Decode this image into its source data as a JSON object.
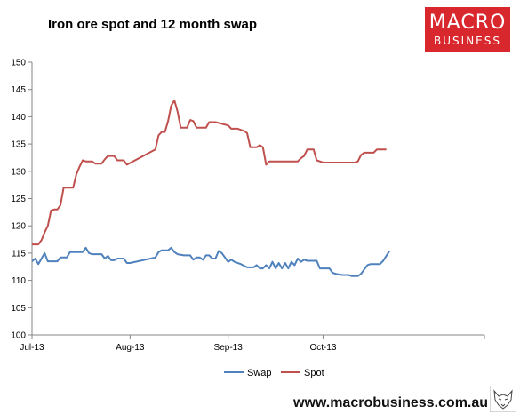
{
  "title": "Iron ore spot and 12 month swap",
  "logo": {
    "line1": "MACRO",
    "line2": "BUSINESS",
    "color": "#d9272e"
  },
  "footer": {
    "url": "www.macrobusiness.com.au"
  },
  "chart_data": {
    "type": "line",
    "ylim": [
      100,
      150
    ],
    "yticks": [
      100,
      105,
      110,
      115,
      120,
      125,
      130,
      135,
      140,
      145,
      150
    ],
    "xlim": [
      "2013-07-01",
      "2013-11-21"
    ],
    "xticks": [
      {
        "label": "Jul-13",
        "date": "2013-07-01"
      },
      {
        "label": "Aug-13",
        "date": "2013-08-01"
      },
      {
        "label": "Sep-13",
        "date": "2013-09-01"
      },
      {
        "label": "Oct-13",
        "date": "2013-10-01"
      }
    ],
    "grid": false,
    "legend": "bottom",
    "series": [
      {
        "name": "Swap",
        "color": "#4f81bd",
        "points": [
          [
            "2013-07-01",
            113.5
          ],
          [
            "2013-07-02",
            114.0
          ],
          [
            "2013-07-03",
            113.0
          ],
          [
            "2013-07-04",
            114.0
          ],
          [
            "2013-07-05",
            115.0
          ],
          [
            "2013-07-06",
            113.5
          ],
          [
            "2013-07-09",
            113.5
          ],
          [
            "2013-07-10",
            114.2
          ],
          [
            "2013-07-12",
            114.2
          ],
          [
            "2013-07-13",
            115.2
          ],
          [
            "2013-07-17",
            115.2
          ],
          [
            "2013-07-18",
            116.0
          ],
          [
            "2013-07-19",
            115.0
          ],
          [
            "2013-07-20",
            114.8
          ],
          [
            "2013-07-23",
            114.8
          ],
          [
            "2013-07-24",
            114.0
          ],
          [
            "2013-07-25",
            114.5
          ],
          [
            "2013-07-26",
            113.7
          ],
          [
            "2013-07-27",
            113.7
          ],
          [
            "2013-07-28",
            114.0
          ],
          [
            "2013-07-30",
            114.0
          ],
          [
            "2013-07-31",
            113.2
          ],
          [
            "2013-08-01",
            113.2
          ],
          [
            "2013-08-09",
            114.2
          ],
          [
            "2013-08-10",
            115.2
          ],
          [
            "2013-08-11",
            115.5
          ],
          [
            "2013-08-13",
            115.5
          ],
          [
            "2013-08-14",
            116.0
          ],
          [
            "2013-08-15",
            115.2
          ],
          [
            "2013-08-16",
            114.8
          ],
          [
            "2013-08-18",
            114.6
          ],
          [
            "2013-08-20",
            114.6
          ],
          [
            "2013-08-21",
            113.8
          ],
          [
            "2013-08-22",
            114.2
          ],
          [
            "2013-08-23",
            114.2
          ],
          [
            "2013-08-24",
            113.8
          ],
          [
            "2013-08-25",
            114.6
          ],
          [
            "2013-08-26",
            114.6
          ],
          [
            "2013-08-27",
            114.0
          ],
          [
            "2013-08-28",
            114.0
          ],
          [
            "2013-08-29",
            115.4
          ],
          [
            "2013-08-30",
            115.0
          ],
          [
            "2013-08-31",
            114.2
          ],
          [
            "2013-09-01",
            113.4
          ],
          [
            "2013-09-02",
            113.8
          ],
          [
            "2013-09-03",
            113.4
          ],
          [
            "2013-09-05",
            113.0
          ],
          [
            "2013-09-07",
            112.4
          ],
          [
            "2013-09-09",
            112.4
          ],
          [
            "2013-09-10",
            112.8
          ],
          [
            "2013-09-11",
            112.2
          ],
          [
            "2013-09-12",
            112.2
          ],
          [
            "2013-09-13",
            112.8
          ],
          [
            "2013-09-14",
            112.2
          ],
          [
            "2013-09-15",
            113.4
          ],
          [
            "2013-09-16",
            112.2
          ],
          [
            "2013-09-17",
            113.2
          ],
          [
            "2013-09-18",
            112.2
          ],
          [
            "2013-09-19",
            113.2
          ],
          [
            "2013-09-20",
            112.2
          ],
          [
            "2013-09-21",
            113.4
          ],
          [
            "2013-09-22",
            112.8
          ],
          [
            "2013-09-23",
            114.0
          ],
          [
            "2013-09-24",
            113.4
          ],
          [
            "2013-09-25",
            113.8
          ],
          [
            "2013-09-26",
            113.6
          ],
          [
            "2013-09-29",
            113.6
          ],
          [
            "2013-09-30",
            112.2
          ],
          [
            "2013-10-03",
            112.2
          ],
          [
            "2013-10-04",
            111.4
          ],
          [
            "2013-10-05",
            111.2
          ],
          [
            "2013-10-07",
            111.0
          ],
          [
            "2013-10-09",
            111.0
          ],
          [
            "2013-10-10",
            110.8
          ],
          [
            "2013-10-12",
            110.8
          ],
          [
            "2013-10-13",
            111.2
          ],
          [
            "2013-10-15",
            112.8
          ],
          [
            "2013-10-16",
            113.0
          ],
          [
            "2013-10-19",
            113.0
          ],
          [
            "2013-10-20",
            113.6
          ],
          [
            "2013-10-22",
            115.4
          ]
        ]
      },
      {
        "name": "Spot",
        "color": "#c0504d",
        "points": [
          [
            "2013-07-01",
            116.6
          ],
          [
            "2013-07-03",
            116.6
          ],
          [
            "2013-07-04",
            117.4
          ],
          [
            "2013-07-05",
            118.8
          ],
          [
            "2013-07-06",
            120.0
          ],
          [
            "2013-07-07",
            122.8
          ],
          [
            "2013-07-08",
            123.0
          ],
          [
            "2013-07-09",
            123.0
          ],
          [
            "2013-07-10",
            123.8
          ],
          [
            "2013-07-11",
            127.0
          ],
          [
            "2013-07-14",
            127.0
          ],
          [
            "2013-07-15",
            129.4
          ],
          [
            "2013-07-16",
            130.8
          ],
          [
            "2013-07-17",
            132.0
          ],
          [
            "2013-07-18",
            131.8
          ],
          [
            "2013-07-20",
            131.8
          ],
          [
            "2013-07-21",
            131.4
          ],
          [
            "2013-07-23",
            131.4
          ],
          [
            "2013-07-24",
            132.2
          ],
          [
            "2013-07-25",
            132.8
          ],
          [
            "2013-07-27",
            132.8
          ],
          [
            "2013-07-28",
            132.0
          ],
          [
            "2013-07-30",
            132.0
          ],
          [
            "2013-07-31",
            131.2
          ],
          [
            "2013-08-09",
            134.0
          ],
          [
            "2013-08-10",
            136.6
          ],
          [
            "2013-08-11",
            137.2
          ],
          [
            "2013-08-12",
            137.2
          ],
          [
            "2013-08-13",
            139.2
          ],
          [
            "2013-08-14",
            142.0
          ],
          [
            "2013-08-15",
            143.0
          ],
          [
            "2013-08-16",
            141.0
          ],
          [
            "2013-08-17",
            138.0
          ],
          [
            "2013-08-19",
            138.0
          ],
          [
            "2013-08-20",
            139.4
          ],
          [
            "2013-08-21",
            139.2
          ],
          [
            "2013-08-22",
            138.0
          ],
          [
            "2013-08-25",
            138.0
          ],
          [
            "2013-08-26",
            139.0
          ],
          [
            "2013-08-28",
            139.0
          ],
          [
            "2013-09-01",
            138.4
          ],
          [
            "2013-09-02",
            137.8
          ],
          [
            "2013-09-04",
            137.8
          ],
          [
            "2013-09-06",
            137.4
          ],
          [
            "2013-09-07",
            137.0
          ],
          [
            "2013-09-08",
            134.4
          ],
          [
            "2013-09-10",
            134.4
          ],
          [
            "2013-09-11",
            134.8
          ],
          [
            "2013-09-12",
            134.4
          ],
          [
            "2013-09-13",
            131.2
          ],
          [
            "2013-09-14",
            131.8
          ],
          [
            "2013-09-23",
            131.8
          ],
          [
            "2013-09-24",
            132.4
          ],
          [
            "2013-09-25",
            132.8
          ],
          [
            "2013-09-26",
            134.0
          ],
          [
            "2013-09-28",
            134.0
          ],
          [
            "2013-09-29",
            132.0
          ],
          [
            "2013-09-30",
            131.8
          ],
          [
            "2013-10-01",
            131.6
          ],
          [
            "2013-10-11",
            131.6
          ],
          [
            "2013-10-12",
            131.8
          ],
          [
            "2013-10-13",
            133.0
          ],
          [
            "2013-10-14",
            133.4
          ],
          [
            "2013-10-17",
            133.4
          ],
          [
            "2013-10-18",
            134.0
          ],
          [
            "2013-10-21",
            134.0
          ]
        ]
      }
    ]
  }
}
